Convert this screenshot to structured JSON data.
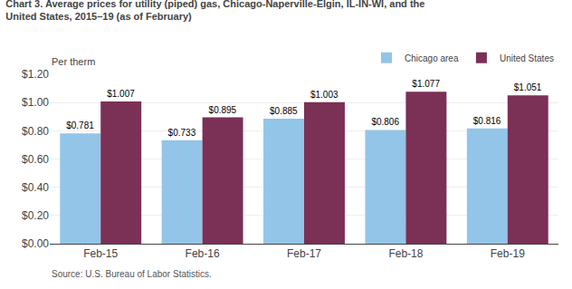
{
  "chart_data": {
    "type": "bar",
    "title": "Chart 3. Average prices for utility (piped) gas, Chicago-Naperville-Elgin, IL-IN-WI, and the\nUnited States, 2015–19 (as of February)",
    "ylabel": "Per therm",
    "annotations": [
      "Source: U.S. Bureau of Labor Statistics."
    ],
    "categories": [
      "Feb-15",
      "Feb-16",
      "Feb-17",
      "Feb-18",
      "Feb-19"
    ],
    "series": [
      {
        "name": "Chicago area",
        "color": "#92C5E8",
        "values": [
          0.781,
          0.733,
          0.885,
          0.806,
          0.816
        ],
        "value_labels": [
          "$0.781",
          "$0.733",
          "$0.885",
          "$0.806",
          "$0.816"
        ]
      },
      {
        "name": "United States",
        "color": "#7B3055",
        "values": [
          1.007,
          0.895,
          1.003,
          1.077,
          1.051
        ],
        "value_labels": [
          "$1.007",
          "$0.895",
          "$1.003",
          "$1.077",
          "$1.051"
        ]
      }
    ],
    "ylim": [
      0,
      1.2
    ],
    "yticks": [
      {
        "value": 0,
        "label": "$0.00"
      },
      {
        "value": 0.2,
        "label": "$0.20"
      },
      {
        "value": 0.4,
        "label": "$0.40"
      },
      {
        "value": 0.6,
        "label": "$0.60"
      },
      {
        "value": 0.8,
        "label": "$0.80"
      },
      {
        "value": 1.0,
        "label": "$1.00"
      },
      {
        "value": 1.2,
        "label": "$1.20"
      }
    ],
    "grid": true,
    "legend": "upper right",
    "data_labels": true
  }
}
